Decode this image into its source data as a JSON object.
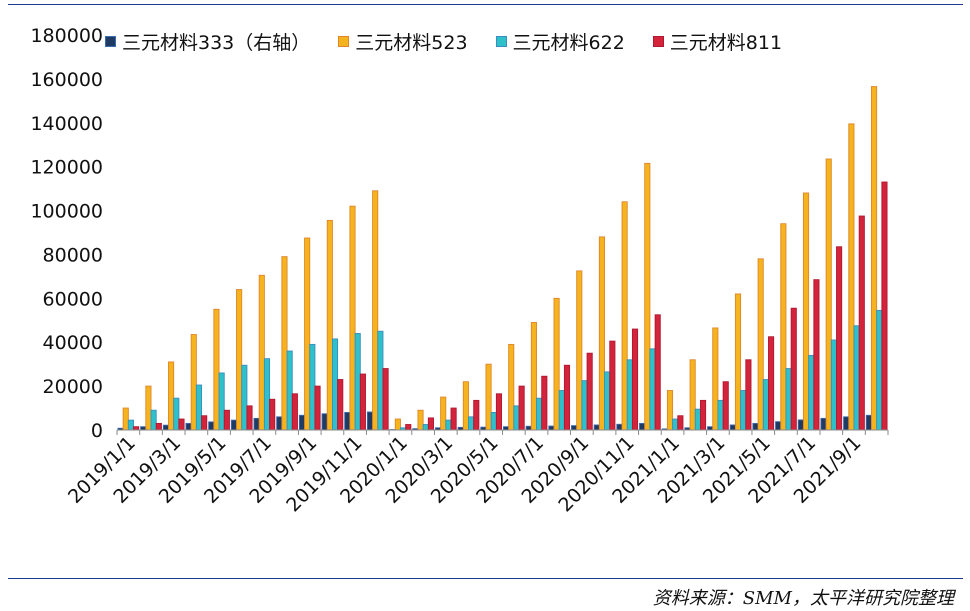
{
  "source_note": "资料来源：SMM，太平洋研究院整理",
  "chart_data": {
    "type": "bar",
    "legend": "top",
    "ylim": [
      0,
      180000
    ],
    "y_ticks": [
      "180000",
      "160000",
      "140000",
      "120000",
      "100000",
      "80000",
      "60000",
      "40000",
      "20000",
      "0"
    ],
    "x_tick_labels": [
      "2019/1/1",
      "2019/3/1",
      "2019/5/1",
      "2019/7/1",
      "2019/9/1",
      "2019/11/1",
      "2020/1/1",
      "2020/3/1",
      "2020/5/1",
      "2020/7/1",
      "2020/9/1",
      "2020/11/1",
      "2021/1/1",
      "2021/3/1",
      "2021/5/1",
      "2021/7/1",
      "2021/9/1"
    ],
    "categories": [
      "2019/1",
      "2019/2",
      "2019/3",
      "2019/4",
      "2019/5",
      "2019/6",
      "2019/7",
      "2019/8",
      "2019/9",
      "2019/10",
      "2019/11",
      "2019/12",
      "2020/1",
      "2020/2",
      "2020/3",
      "2020/4",
      "2020/5",
      "2020/6",
      "2020/7",
      "2020/8",
      "2020/9",
      "2020/10",
      "2020/11",
      "2020/12",
      "2021/1",
      "2021/2",
      "2021/3",
      "2021/4",
      "2021/5",
      "2021/6",
      "2021/7",
      "2021/8",
      "2021/9",
      "2021/10"
    ],
    "series": [
      {
        "name": "三元材料333（右轴）",
        "color": "#1f3a63",
        "border": "#3a6db0",
        "values": [
          800,
          1500,
          2200,
          3000,
          3700,
          4500,
          5300,
          6000,
          6700,
          7400,
          8000,
          8200,
          200,
          600,
          1000,
          1200,
          1300,
          1500,
          1700,
          1800,
          2000,
          2300,
          2600,
          3000,
          500,
          1000,
          1500,
          2300,
          3000,
          3800,
          4600,
          5300,
          6000,
          6700
        ]
      },
      {
        "name": "三元材料523",
        "color": "#f5b41e",
        "border": "#e0852a",
        "values": [
          10000,
          20000,
          31000,
          43500,
          55000,
          64000,
          70500,
          79000,
          87500,
          95500,
          102000,
          109000,
          5000,
          9000,
          15000,
          22000,
          30000,
          39000,
          49000,
          60000,
          72500,
          88000,
          104000,
          121500,
          18000,
          32000,
          46500,
          62000,
          78000,
          94000,
          108000,
          123500,
          139500,
          156500
        ]
      },
      {
        "name": "三元材料622",
        "color": "#2ec1c9",
        "border": "#3a8dc0",
        "values": [
          4500,
          9000,
          14500,
          20500,
          26000,
          29500,
          32500,
          36000,
          39000,
          41500,
          44000,
          45000,
          1000,
          2500,
          4500,
          6000,
          8000,
          11000,
          14500,
          18000,
          22500,
          26500,
          32000,
          37000,
          5000,
          9500,
          13500,
          18000,
          23000,
          28000,
          34000,
          41000,
          47500,
          54500
        ]
      },
      {
        "name": "三元材料811",
        "color": "#d3243c",
        "border": "#b01830",
        "values": [
          1500,
          3000,
          5000,
          6500,
          9000,
          11000,
          14000,
          16500,
          20000,
          23000,
          25500,
          28000,
          2500,
          5500,
          10000,
          13500,
          16500,
          20000,
          24500,
          29500,
          35000,
          40500,
          46000,
          52500,
          6500,
          13500,
          22000,
          32000,
          42500,
          55500,
          68500,
          83500,
          97500,
          113000
        ]
      }
    ]
  }
}
